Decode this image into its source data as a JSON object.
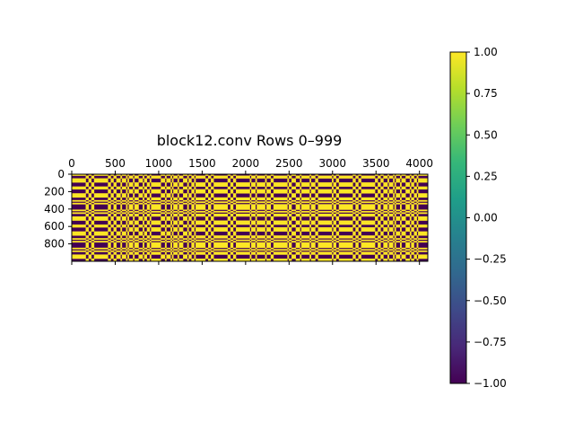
{
  "chart_data": {
    "type": "heatmap",
    "title": "block12.conv Rows 0–999",
    "x_ticks": [
      0,
      500,
      1000,
      1500,
      2000,
      2500,
      3000,
      3500,
      4000
    ],
    "x_tick_labels": [
      "0",
      "500",
      "1000",
      "1500",
      "2000",
      "2500",
      "3000",
      "3500",
      "4000"
    ],
    "xlim": [
      0,
      4096
    ],
    "x_tick_position": "top",
    "y_ticks": [
      0,
      200,
      400,
      600,
      800
    ],
    "y_tick_labels": [
      "0",
      "200",
      "400",
      "600",
      "800"
    ],
    "ylim": [
      1000,
      0
    ],
    "value_range": [
      -1.0,
      1.0
    ],
    "colorbar_ticks": [
      1.0,
      0.75,
      0.5,
      0.25,
      0.0,
      -0.25,
      -0.5,
      -0.75,
      -1.0
    ],
    "colorbar_tick_labels": [
      "1.00",
      "0.75",
      "0.50",
      "0.25",
      "0.00",
      "−0.25",
      "−0.50",
      "−0.75",
      "−1.00"
    ],
    "colormap": [
      "#440154",
      "#482878",
      "#3e4a89",
      "#31688e",
      "#26828e",
      "#1f9e89",
      "#35b779",
      "#6ece58",
      "#b5de2b",
      "#fde725"
    ],
    "low_color": "#440154",
    "high_color": "#fde725",
    "grid": false
  }
}
